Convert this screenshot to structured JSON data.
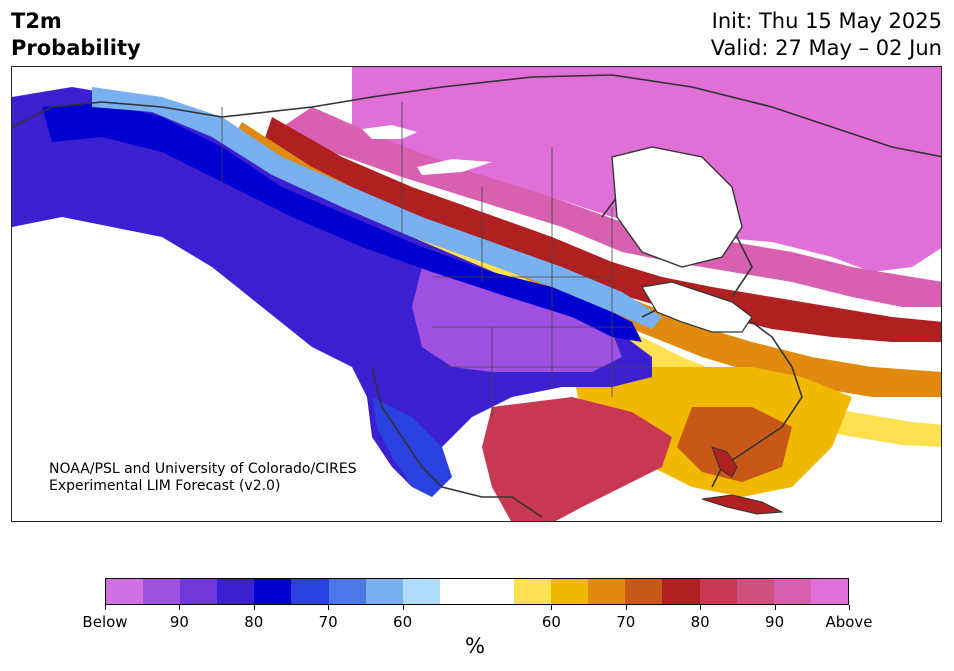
{
  "title": {
    "line1": "T2m",
    "line2": "Probability"
  },
  "dates": {
    "init": "Init: Thu 15 May 2025",
    "valid": "Valid: 27 May – 02 Jun"
  },
  "credit": {
    "line1": "NOAA/PSL and University of Colorado/CIRES",
    "line2": "Experimental LIM Forecast (v2.0)"
  },
  "colorbar": {
    "colors": [
      "#d070e0",
      "#a050e0",
      "#7038d8",
      "#3a20d0",
      "#0000d0",
      "#2a40e0",
      "#4a78ea",
      "#78b0f0",
      "#b0dcfa",
      "#ffffff",
      "#ffffff",
      "#ffe050",
      "#f0b800",
      "#e08a10",
      "#c85818",
      "#b02020",
      "#c83850",
      "#d05080",
      "#d860b0",
      "#e070d8"
    ],
    "ticks": [
      "Below",
      "90",
      "80",
      "70",
      "60",
      "60",
      "70",
      "80",
      "90",
      "Above"
    ],
    "unit": "%"
  },
  "legend_meaning": {
    "below": "Below",
    "above": "Above"
  }
}
